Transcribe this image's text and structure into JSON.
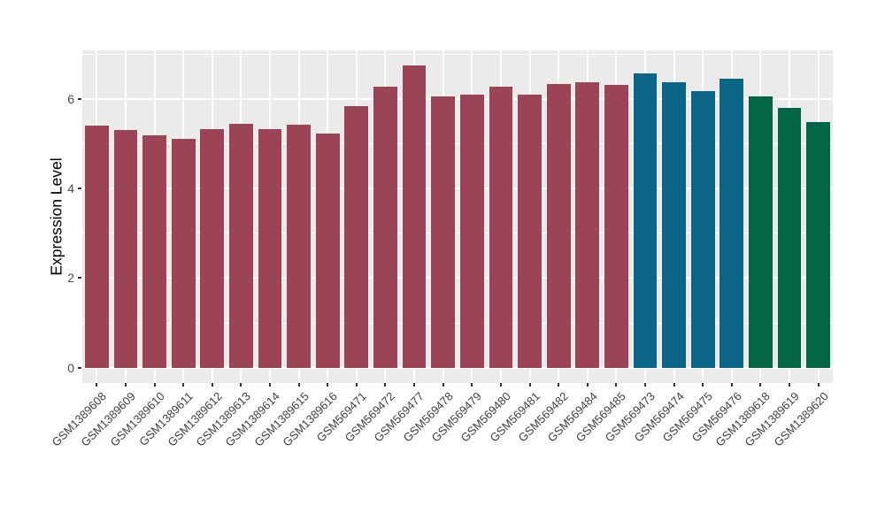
{
  "chart_data": {
    "type": "bar",
    "title": "",
    "ylabel": "Expression Level",
    "xlabel": "",
    "legend_position": "none",
    "grid": true,
    "panel_background": "#EBEBEB",
    "gridline_color": "#FFFFFF",
    "axis_text_color": "#4D4D4D",
    "xaxis_text_color": "#404040",
    "axis_title_color": "#000000",
    "tick_mark_color": "#333333",
    "ylim": [
      -0.34,
      7.08
    ],
    "ytick_values": [
      0,
      2,
      4,
      6
    ],
    "ytick_labels": [
      "0",
      "2",
      "4",
      "6"
    ],
    "minor_gridline_values": [
      1,
      3,
      5,
      7
    ],
    "categories": [
      "GSM1389608",
      "GSM1389609",
      "GSM1389610",
      "GSM1389611",
      "GSM1389612",
      "GSM1389613",
      "GSM1389614",
      "GSM1389615",
      "GSM1389616",
      "GSM569471",
      "GSM569472",
      "GSM569477",
      "GSM569478",
      "GSM569479",
      "GSM569480",
      "GSM569481",
      "GSM569482",
      "GSM569484",
      "GSM569485",
      "GSM569473",
      "GSM569474",
      "GSM569475",
      "GSM569476",
      "GSM1389618",
      "GSM1389619",
      "GSM1389620"
    ],
    "values": [
      5.4,
      5.3,
      5.18,
      5.1,
      5.32,
      5.45,
      5.33,
      5.42,
      5.23,
      5.83,
      6.28,
      6.74,
      6.06,
      6.1,
      6.28,
      6.1,
      6.33,
      6.36,
      6.32,
      6.57,
      6.37,
      6.17,
      6.44,
      6.06,
      5.8,
      5.49
    ],
    "bar_colors": [
      "#9A4455",
      "#9A4455",
      "#9A4455",
      "#9A4455",
      "#9A4455",
      "#9A4455",
      "#9A4455",
      "#9A4455",
      "#9A4455",
      "#9A4455",
      "#9A4455",
      "#9A4455",
      "#9A4455",
      "#9A4455",
      "#9A4455",
      "#9A4455",
      "#9A4455",
      "#9A4455",
      "#9A4455",
      "#0A6586",
      "#0A6586",
      "#0A6586",
      "#0A6586",
      "#016546",
      "#016546",
      "#016546"
    ],
    "palette": {
      "group_maroon": "#9A4455",
      "group_teal": "#0A6586",
      "group_green": "#016546"
    }
  }
}
